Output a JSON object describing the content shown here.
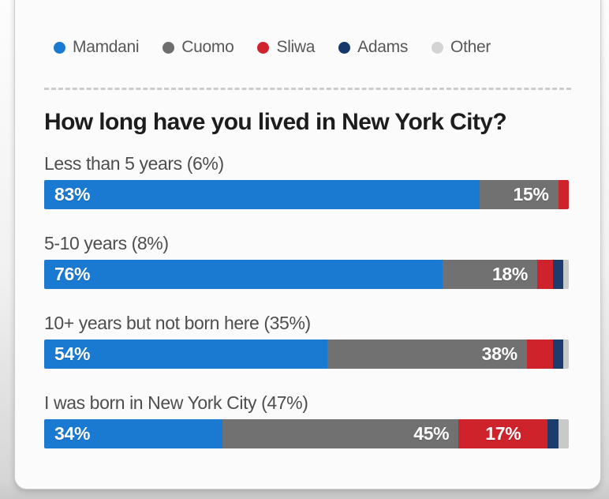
{
  "title": "How long have you lived in New York City?",
  "legend": {
    "items": [
      {
        "label": "Mamdani",
        "color": "#1a7ad2"
      },
      {
        "label": "Cuomo",
        "color": "#6e6e6e"
      },
      {
        "label": "Sliwa",
        "color": "#cf232b"
      },
      {
        "label": "Adams",
        "color": "#15386b"
      },
      {
        "label": "Other",
        "color": "#d4d4d4"
      }
    ]
  },
  "colors": {
    "mamdani": "#1a7ad2",
    "cuomo": "#717171",
    "sliwa": "#cf232b",
    "adams": "#1b3c6d",
    "other": "#c9c9c9"
  },
  "rows": [
    {
      "label": "Less than 5 years (6%)",
      "segments": [
        {
          "party": "mamdani",
          "value": 83,
          "display": "83%",
          "align": "left"
        },
        {
          "party": "cuomo",
          "value": 15,
          "display": "15%",
          "align": "right"
        },
        {
          "party": "sliwa",
          "value": 2,
          "display": ""
        }
      ]
    },
    {
      "label": "5-10 years (8%)",
      "segments": [
        {
          "party": "mamdani",
          "value": 76,
          "display": "76%",
          "align": "left"
        },
        {
          "party": "cuomo",
          "value": 18,
          "display": "18%",
          "align": "right"
        },
        {
          "party": "sliwa",
          "value": 3,
          "display": ""
        },
        {
          "party": "adams",
          "value": 2,
          "display": ""
        },
        {
          "party": "other",
          "value": 1,
          "display": ""
        }
      ]
    },
    {
      "label": "10+ years but not born here (35%)",
      "segments": [
        {
          "party": "mamdani",
          "value": 54,
          "display": "54%",
          "align": "left"
        },
        {
          "party": "cuomo",
          "value": 38,
          "display": "38%",
          "align": "right"
        },
        {
          "party": "sliwa",
          "value": 5,
          "display": ""
        },
        {
          "party": "adams",
          "value": 2,
          "display": ""
        },
        {
          "party": "other",
          "value": 1,
          "display": ""
        }
      ]
    },
    {
      "label": "I was born in New York City (47%)",
      "segments": [
        {
          "party": "mamdani",
          "value": 34,
          "display": "34%",
          "align": "left"
        },
        {
          "party": "cuomo",
          "value": 45,
          "display": "45%",
          "align": "right"
        },
        {
          "party": "sliwa",
          "value": 17,
          "display": "17%",
          "align": "center"
        },
        {
          "party": "adams",
          "value": 2,
          "display": ""
        },
        {
          "party": "other",
          "value": 2,
          "display": ""
        }
      ]
    }
  ],
  "chart_data": {
    "type": "bar",
    "variant": "horizontal-stacked",
    "title": "How long have you lived in New York City?",
    "unit": "%",
    "xlim": [
      0,
      100
    ],
    "grid": false,
    "legend_position": "top",
    "categories": [
      "Less than 5 years (6%)",
      "5-10 years (8%)",
      "10+ years but not born here (35%)",
      "I was born in New York City (47%)"
    ],
    "series": [
      {
        "name": "Mamdani",
        "values": [
          83,
          76,
          54,
          34
        ]
      },
      {
        "name": "Cuomo",
        "values": [
          15,
          18,
          38,
          45
        ]
      },
      {
        "name": "Sliwa",
        "values": [
          2,
          3,
          5,
          17
        ]
      },
      {
        "name": "Adams",
        "values": [
          0,
          2,
          2,
          2
        ]
      },
      {
        "name": "Other",
        "values": [
          0,
          1,
          1,
          2
        ]
      }
    ],
    "shown_value_labels": [
      [
        "83%",
        "15%"
      ],
      [
        "76%",
        "18%"
      ],
      [
        "54%",
        "38%"
      ],
      [
        "34%",
        "45%",
        "17%"
      ]
    ]
  }
}
